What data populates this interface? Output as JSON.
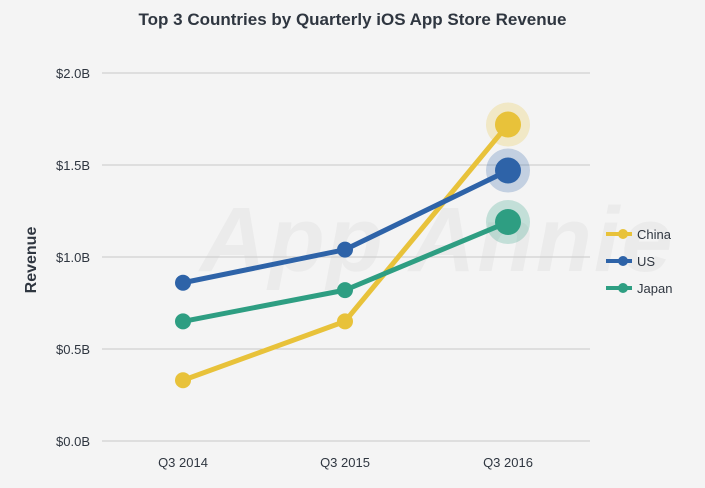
{
  "chart_data": {
    "type": "line",
    "title": "Top 3 Countries by Quarterly iOS App Store Revenue",
    "ylabel": "Revenue",
    "xlabel": "",
    "categories": [
      "Q3 2014",
      "Q3 2015",
      "Q3 2016"
    ],
    "y_ticks": [
      "$0.0B",
      "$0.5B",
      "$1.0B",
      "$1.5B",
      "$2.0B"
    ],
    "ylim": [
      0,
      2.0
    ],
    "grid": true,
    "legend_position": "right",
    "series": [
      {
        "name": "China",
        "color": "#e8c23a",
        "values": [
          0.33,
          0.65,
          1.72
        ]
      },
      {
        "name": "US",
        "color": "#2e63a8",
        "values": [
          0.86,
          1.04,
          1.47
        ]
      },
      {
        "name": "Japan",
        "color": "#2e9e82",
        "values": [
          0.65,
          0.82,
          1.19
        ]
      }
    ]
  },
  "watermark_text": "App Annie"
}
